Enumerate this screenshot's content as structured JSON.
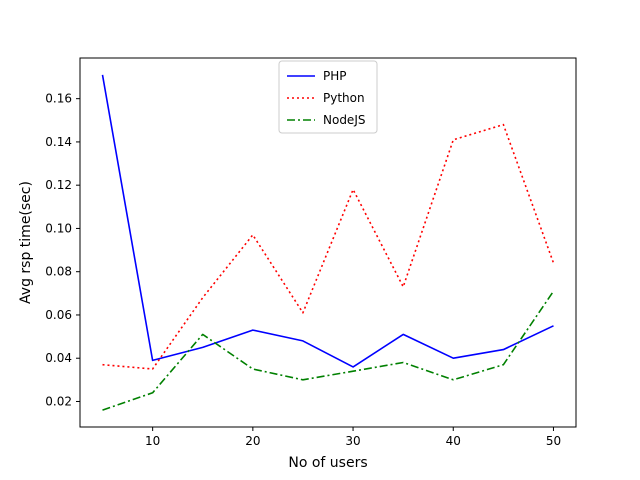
{
  "chart_data": {
    "type": "line",
    "title": "",
    "xlabel": "No of users",
    "ylabel": "Avg rsp time(sec)",
    "x": [
      5,
      10,
      15,
      20,
      25,
      30,
      35,
      40,
      45,
      50
    ],
    "xlim": [
      2.75,
      52.25
    ],
    "ylim": [
      0.0082,
      0.1788
    ],
    "xticks": [
      10,
      20,
      30,
      40,
      50
    ],
    "yticks": [
      0.02,
      0.04,
      0.06,
      0.08,
      0.1,
      0.12,
      0.14,
      0.16
    ],
    "xtick_labels": [
      "10",
      "20",
      "30",
      "40",
      "50"
    ],
    "ytick_labels": [
      "0.02",
      "0.04",
      "0.06",
      "0.08",
      "0.10",
      "0.12",
      "0.14",
      "0.16"
    ],
    "grid": false,
    "legend_position": "top-center",
    "series": [
      {
        "name": "PHP",
        "color": "#0000ff",
        "style": "solid",
        "values": [
          0.171,
          0.039,
          0.045,
          0.053,
          0.048,
          0.036,
          0.051,
          0.04,
          0.044,
          0.055
        ]
      },
      {
        "name": "Python",
        "color": "#ff0000",
        "style": "dotted",
        "values": [
          0.037,
          0.035,
          0.068,
          0.097,
          0.061,
          0.118,
          0.073,
          0.141,
          0.148,
          0.084
        ]
      },
      {
        "name": "NodeJS",
        "color": "#008000",
        "style": "dashdot",
        "values": [
          0.016,
          0.024,
          0.051,
          0.035,
          0.03,
          0.034,
          0.038,
          0.03,
          0.037,
          0.071
        ]
      }
    ]
  }
}
